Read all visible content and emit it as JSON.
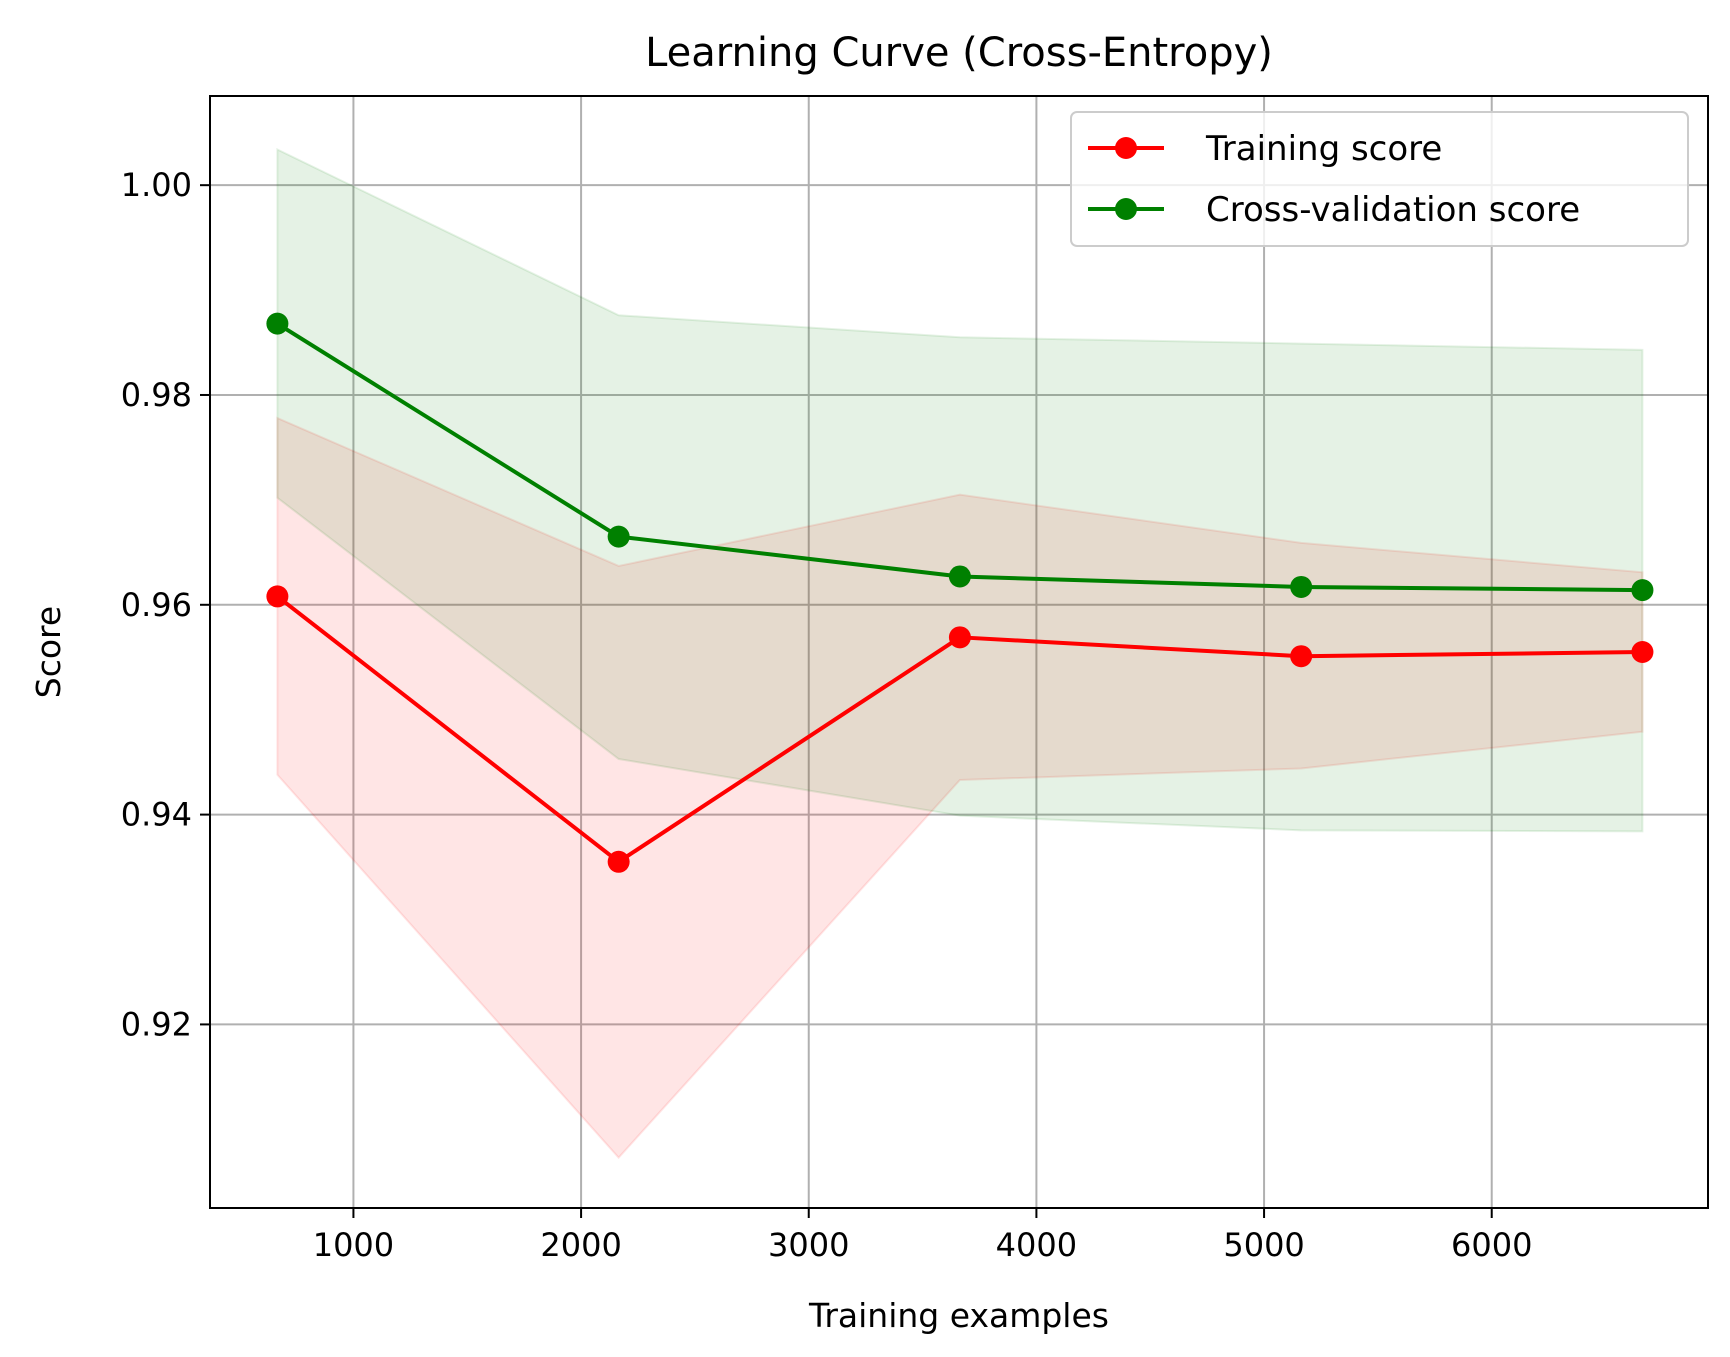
{
  "chart_data": {
    "type": "line",
    "title": "Learning Curve (Cross-Entropy)",
    "xlabel": "Training examples",
    "ylabel": "Score",
    "xlim": [
      370,
      6950
    ],
    "ylim": [
      0.9025,
      1.0085
    ],
    "xticks": [
      1000,
      2000,
      3000,
      4000,
      5000,
      6000
    ],
    "xtick_labels": [
      "1000",
      "2000",
      "3000",
      "4000",
      "5000",
      "6000"
    ],
    "yticks": [
      0.92,
      0.94,
      0.96,
      0.98,
      1.0
    ],
    "ytick_labels": [
      "0.92",
      "0.94",
      "0.96",
      "0.98",
      "1.00"
    ],
    "grid": true,
    "legend_position": "top-right",
    "x": [
      666,
      2165,
      3664,
      5163,
      6662
    ],
    "series": [
      {
        "name": "Training score",
        "color": "#ff0000",
        "marker": "circle",
        "values": [
          0.9608,
          0.9355,
          0.9569,
          0.9551,
          0.9555
        ],
        "band_upper": [
          0.9778,
          0.9637,
          0.9705,
          0.9659,
          0.9631
        ],
        "band_lower": [
          0.9438,
          0.9073,
          0.9433,
          0.9444,
          0.9479
        ]
      },
      {
        "name": "Cross-validation score",
        "color": "#008000",
        "marker": "circle",
        "values": [
          0.9868,
          0.9665,
          0.9627,
          0.9617,
          0.9614
        ],
        "band_upper": [
          1.0034,
          0.9876,
          0.9855,
          0.9849,
          0.9843
        ],
        "band_lower": [
          0.9702,
          0.9453,
          0.9399,
          0.9385,
          0.9384
        ]
      }
    ]
  }
}
